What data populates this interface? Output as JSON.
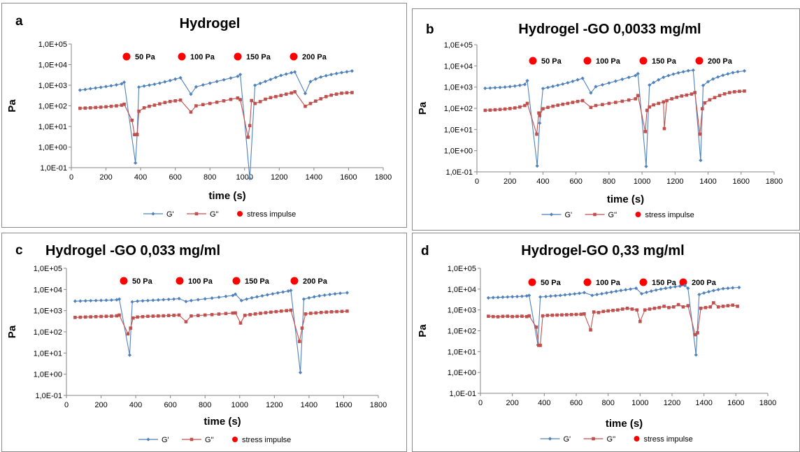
{
  "colors": {
    "g_prime": "#4F81BD",
    "g_double_prime": "#C0504D",
    "impulse": "#FF0000",
    "frame": "#8a8a8a"
  },
  "legend": {
    "g_prime": "G'",
    "g_double_prime": "G''",
    "stress_impulse": "stress impulse"
  },
  "annotations": [
    "50 Pa",
    "100 Pa",
    "150 Pa",
    "200 Pa"
  ],
  "chart_data": [
    {
      "type": "line",
      "panel": "a",
      "title": "Hydrogel",
      "xlabel": "time (s)",
      "ylabel": "Pa",
      "xlim": [
        0,
        1800
      ],
      "ylim": [
        0.1,
        100000
      ],
      "yscale": "log",
      "x_ticks": [
        "0",
        "200",
        "400",
        "600",
        "800",
        "1000",
        "1200",
        "1400",
        "1600",
        "1800"
      ],
      "y_ticks": [
        "1,0E-01",
        "1,0E+00",
        "1,0E+01",
        "1,0E+02",
        "1,0E+03",
        "1,0E+04",
        "1,0E+05"
      ],
      "grid": false,
      "legend_position": "bottom",
      "annotations": [
        "50 Pa",
        "100 Pa",
        "150 Pa",
        "200 Pa"
      ],
      "series": [
        {
          "name": "G'",
          "x": [
            50,
            80,
            110,
            140,
            170,
            200,
            230,
            260,
            290,
            305,
            370,
            380,
            390,
            420,
            450,
            480,
            510,
            540,
            570,
            600,
            630,
            690,
            720,
            760,
            800,
            840,
            880,
            920,
            960,
            975,
            1030,
            1060,
            1090,
            1120,
            1150,
            1180,
            1210,
            1240,
            1270,
            1290,
            1350,
            1380,
            1410,
            1440,
            1470,
            1500,
            1530,
            1560,
            1590,
            1620
          ],
          "y": [
            580,
            620,
            680,
            730,
            790,
            860,
            940,
            1040,
            1170,
            1400,
            0.17,
            4.5,
            810,
            910,
            1010,
            1120,
            1260,
            1460,
            1690,
            1980,
            2290,
            370,
            830,
            1030,
            1250,
            1520,
            1840,
            2230,
            2690,
            3310,
            0.03,
            990,
            1230,
            1530,
            1910,
            2390,
            2980,
            3470,
            4050,
            4400,
            400,
            1500,
            2000,
            2500,
            2900,
            3300,
            3700,
            4100,
            4500,
            4900
          ]
        },
        {
          "name": "G''",
          "x": [
            50,
            80,
            110,
            140,
            170,
            200,
            230,
            260,
            290,
            305,
            350,
            365,
            380,
            390,
            420,
            450,
            480,
            510,
            540,
            570,
            600,
            630,
            690,
            720,
            760,
            800,
            840,
            880,
            920,
            960,
            975,
            1020,
            1030,
            1040,
            1060,
            1090,
            1120,
            1150,
            1180,
            1210,
            1240,
            1270,
            1290,
            1350,
            1380,
            1410,
            1440,
            1470,
            1500,
            1530,
            1560,
            1590,
            1620
          ],
          "y": [
            76,
            78,
            80,
            83,
            86,
            90,
            95,
            100,
            108,
            120,
            20,
            4,
            4,
            55,
            80,
            95,
            108,
            125,
            145,
            162,
            175,
            190,
            50,
            100,
            115,
            130,
            150,
            175,
            205,
            240,
            200,
            3,
            11,
            180,
            130,
            160,
            210,
            250,
            280,
            320,
            370,
            420,
            480,
            95,
            130,
            170,
            220,
            280,
            330,
            370,
            410,
            430,
            440
          ]
        },
        {
          "name": "stress impulse",
          "x": [],
          "y": []
        }
      ]
    },
    {
      "type": "line",
      "panel": "b",
      "title": "Hydrogel -GO 0,0033 mg/ml",
      "xlabel": "time (s)",
      "ylabel": "Pa",
      "xlim": [
        0,
        1800
      ],
      "ylim": [
        0.1,
        100000
      ],
      "yscale": "log",
      "x_ticks": [
        "0",
        "200",
        "400",
        "600",
        "800",
        "1000",
        "1200",
        "1400",
        "1600",
        "1800"
      ],
      "y_ticks": [
        "1,0E-01",
        "1,0E+00",
        "1,0E+01",
        "1,0E+02",
        "1,0E+03",
        "1,0E+04",
        "1,0E+05"
      ],
      "grid": false,
      "legend_position": "bottom",
      "annotations": [
        "50 Pa",
        "100 Pa",
        "150 Pa",
        "200 Pa"
      ],
      "series": [
        {
          "name": "G'",
          "x": [
            50,
            80,
            110,
            140,
            170,
            200,
            230,
            260,
            290,
            305,
            365,
            380,
            400,
            430,
            460,
            490,
            520,
            550,
            580,
            610,
            640,
            690,
            720,
            760,
            800,
            840,
            880,
            920,
            960,
            975,
            1025,
            1045,
            1070,
            1100,
            1130,
            1160,
            1190,
            1220,
            1250,
            1280,
            1310,
            1355,
            1370,
            1400,
            1430,
            1460,
            1490,
            1520,
            1550,
            1580,
            1620
          ],
          "y": [
            880,
            900,
            930,
            960,
            1000,
            1050,
            1120,
            1210,
            1330,
            2000,
            0.19,
            20,
            850,
            960,
            1080,
            1220,
            1390,
            1600,
            1870,
            2200,
            2600,
            530,
            1050,
            1280,
            1560,
            1910,
            2340,
            2870,
            3500,
            4300,
            0.18,
            1250,
            1650,
            2200,
            2900,
            3500,
            4100,
            4700,
            5300,
            5900,
            6300,
            0.35,
            1200,
            1800,
            2400,
            3000,
            3600,
            4200,
            4800,
            5300,
            5800
          ]
        },
        {
          "name": "G''",
          "x": [
            50,
            80,
            110,
            140,
            170,
            200,
            230,
            260,
            290,
            305,
            362,
            375,
            380,
            400,
            430,
            460,
            490,
            520,
            550,
            580,
            610,
            640,
            690,
            720,
            760,
            800,
            840,
            880,
            920,
            960,
            975,
            1020,
            1030,
            1045,
            1070,
            1100,
            1130,
            1135,
            1150,
            1180,
            1210,
            1240,
            1270,
            1300,
            1320,
            1350,
            1365,
            1380,
            1410,
            1440,
            1470,
            1500,
            1530,
            1560,
            1590,
            1620
          ],
          "y": [
            80,
            82,
            85,
            88,
            92,
            97,
            104,
            115,
            135,
            170,
            6,
            60,
            45,
            95,
            110,
            125,
            140,
            155,
            170,
            190,
            210,
            230,
            110,
            135,
            150,
            170,
            190,
            215,
            245,
            280,
            400,
            8,
            80,
            115,
            145,
            170,
            200,
            11,
            230,
            280,
            330,
            380,
            420,
            470,
            550,
            6,
            95,
            180,
            250,
            320,
            400,
            480,
            550,
            600,
            630,
            650
          ]
        },
        {
          "name": "stress impulse",
          "x": [],
          "y": []
        }
      ]
    },
    {
      "type": "line",
      "panel": "c",
      "title": "Hydrogel -GO 0,033 mg/ml",
      "xlabel": "time (s)",
      "ylabel": "Pa",
      "xlim": [
        0,
        1800
      ],
      "ylim": [
        0.1,
        100000
      ],
      "yscale": "log",
      "x_ticks": [
        "0",
        "200",
        "400",
        "600",
        "800",
        "1000",
        "1200",
        "1400",
        "1600",
        "1800"
      ],
      "y_ticks": [
        "1,0E-01",
        "1,0E+00",
        "1,0E+01",
        "1,0E+02",
        "1,0E+03",
        "1,0E+04",
        "1,0E+05"
      ],
      "grid": false,
      "legend_position": "bottom",
      "annotations": [
        "50 Pa",
        "100 Pa",
        "150 Pa",
        "200 Pa"
      ],
      "series": [
        {
          "name": "G'",
          "x": [
            50,
            80,
            110,
            140,
            170,
            200,
            230,
            260,
            290,
            305,
            365,
            380,
            410,
            440,
            470,
            500,
            530,
            560,
            590,
            620,
            650,
            690,
            720,
            760,
            800,
            840,
            880,
            920,
            960,
            975,
            1010,
            1040,
            1070,
            1100,
            1130,
            1160,
            1190,
            1220,
            1250,
            1280,
            1295,
            1350,
            1370,
            1400,
            1430,
            1460,
            1490,
            1520,
            1550,
            1580,
            1620
          ],
          "y": [
            2800,
            2850,
            2900,
            2950,
            3000,
            3050,
            3100,
            3150,
            3250,
            3500,
            8,
            2600,
            2800,
            2900,
            3000,
            3100,
            3200,
            3300,
            3400,
            3500,
            3700,
            2700,
            3000,
            3300,
            3600,
            3900,
            4300,
            4700,
            5200,
            6000,
            3000,
            3500,
            4000,
            4500,
            5000,
            5600,
            6200,
            6900,
            7600,
            8400,
            9000,
            1.2,
            3500,
            4000,
            4500,
            5000,
            5400,
            5800,
            6200,
            6600,
            7000
          ]
        },
        {
          "name": "G''",
          "x": [
            50,
            80,
            110,
            140,
            170,
            200,
            230,
            260,
            290,
            305,
            355,
            370,
            385,
            410,
            440,
            470,
            500,
            530,
            560,
            590,
            620,
            650,
            690,
            720,
            760,
            800,
            840,
            880,
            920,
            960,
            975,
            1005,
            1030,
            1060,
            1090,
            1120,
            1150,
            1180,
            1210,
            1240,
            1270,
            1295,
            1345,
            1360,
            1380,
            1410,
            1440,
            1470,
            1500,
            1530,
            1560,
            1590,
            1620
          ],
          "y": [
            480,
            490,
            500,
            510,
            520,
            530,
            540,
            550,
            570,
            620,
            80,
            150,
            450,
            500,
            520,
            540,
            550,
            560,
            570,
            590,
            600,
            620,
            300,
            560,
            590,
            620,
            650,
            690,
            730,
            770,
            780,
            260,
            600,
            650,
            700,
            750,
            800,
            850,
            900,
            950,
            1000,
            1050,
            35,
            150,
            700,
            750,
            780,
            820,
            850,
            880,
            900,
            920,
            950
          ]
        },
        {
          "name": "stress impulse",
          "x": [],
          "y": []
        }
      ]
    },
    {
      "type": "line",
      "panel": "d",
      "title": "Hydrogel-GO 0,33 mg/ml",
      "xlabel": "time (s)",
      "ylabel": "Pa",
      "xlim": [
        0,
        1800
      ],
      "ylim": [
        0.1,
        100000
      ],
      "yscale": "log",
      "x_ticks": [
        "0",
        "200",
        "400",
        "600",
        "800",
        "1000",
        "1200",
        "1400",
        "1600",
        "1800"
      ],
      "y_ticks": [
        "1,0E-01",
        "1,0E+00",
        "1,0E+01",
        "1,0E+02",
        "1,0E+03",
        "1,0E+04",
        "1,0E+05"
      ],
      "grid": false,
      "legend_position": "bottom",
      "annotations": [
        "50 Pa",
        "100 Pa",
        "150 Pa",
        "200 Pa"
      ],
      "series": [
        {
          "name": "G'",
          "x": [
            50,
            80,
            110,
            140,
            170,
            200,
            230,
            260,
            290,
            305,
            360,
            375,
            410,
            440,
            470,
            500,
            530,
            560,
            590,
            620,
            650,
            700,
            730,
            760,
            790,
            820,
            850,
            880,
            910,
            940,
            975,
            1010,
            1040,
            1070,
            1100,
            1130,
            1160,
            1190,
            1220,
            1250,
            1280,
            1300,
            1350,
            1370,
            1400,
            1430,
            1460,
            1490,
            1520,
            1550,
            1580,
            1620
          ],
          "y": [
            3800,
            3900,
            4000,
            4100,
            4200,
            4300,
            4400,
            4500,
            4700,
            5000,
            21,
            4200,
            4400,
            4600,
            4800,
            5000,
            5300,
            5600,
            5900,
            6300,
            6800,
            5000,
            5500,
            6000,
            6600,
            7200,
            7900,
            8600,
            9300,
            10000,
            11000,
            6000,
            7000,
            8000,
            9000,
            10000,
            11000,
            12000,
            13000,
            14000,
            15000,
            11000,
            7,
            5500,
            6500,
            7500,
            8500,
            9500,
            10500,
            11000,
            11500,
            12000
          ]
        },
        {
          "name": "G''",
          "x": [
            50,
            80,
            110,
            140,
            170,
            200,
            230,
            260,
            290,
            305,
            350,
            365,
            375,
            390,
            420,
            450,
            480,
            510,
            540,
            570,
            600,
            630,
            650,
            690,
            710,
            740,
            770,
            800,
            830,
            860,
            890,
            920,
            950,
            980,
            1000,
            1030,
            1060,
            1090,
            1120,
            1150,
            1180,
            1210,
            1240,
            1270,
            1300,
            1345,
            1360,
            1380,
            1410,
            1440,
            1460,
            1490,
            1520,
            1550,
            1580,
            1610
          ],
          "y": [
            500,
            480,
            470,
            490,
            500,
            480,
            490,
            500,
            480,
            520,
            150,
            20,
            20,
            520,
            550,
            560,
            570,
            580,
            590,
            600,
            610,
            620,
            650,
            110,
            800,
            750,
            850,
            900,
            950,
            1000,
            1100,
            1200,
            1100,
            1000,
            280,
            1000,
            1100,
            1200,
            1300,
            1500,
            1300,
            1400,
            1800,
            1400,
            1600,
            65,
            80,
            1200,
            1300,
            1400,
            2200,
            1400,
            1500,
            1600,
            1700,
            1500
          ]
        },
        {
          "name": "stress impulse",
          "x": [],
          "y": []
        }
      ]
    }
  ]
}
